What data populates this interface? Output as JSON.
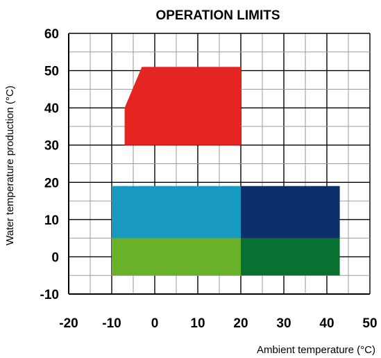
{
  "chart_data": {
    "type": "area",
    "title": "OPERATION LIMITS",
    "xlabel": "Ambient temperature (°C)",
    "ylabel": "Water temperature production (°C)",
    "xlim": [
      -20,
      50
    ],
    "ylim": [
      -10,
      60
    ],
    "x_ticks": [
      "-20",
      "-10",
      "0",
      "10",
      "20",
      "30",
      "40",
      "50"
    ],
    "y_ticks": [
      "-10",
      "0",
      "10",
      "20",
      "30",
      "40",
      "50",
      "60"
    ],
    "grid": true,
    "legend": "none",
    "regions": [
      {
        "color": "#e52521",
        "polygon": [
          [
            -7,
            30
          ],
          [
            -7,
            40
          ],
          [
            -3,
            51
          ],
          [
            20,
            51
          ],
          [
            20,
            30
          ]
        ]
      },
      {
        "color": "#1899c0",
        "polygon": [
          [
            -10,
            5
          ],
          [
            -10,
            19
          ],
          [
            20,
            19
          ],
          [
            20,
            5
          ]
        ]
      },
      {
        "color": "#0d2f6b",
        "polygon": [
          [
            20,
            5
          ],
          [
            20,
            19
          ],
          [
            43,
            19
          ],
          [
            43,
            5
          ]
        ]
      },
      {
        "color": "#6ab12a",
        "polygon": [
          [
            -10,
            -5
          ],
          [
            -10,
            5
          ],
          [
            20,
            5
          ],
          [
            20,
            -5
          ]
        ]
      },
      {
        "color": "#087132",
        "polygon": [
          [
            20,
            -5
          ],
          [
            20,
            5
          ],
          [
            43,
            5
          ],
          [
            43,
            -5
          ]
        ]
      }
    ]
  }
}
